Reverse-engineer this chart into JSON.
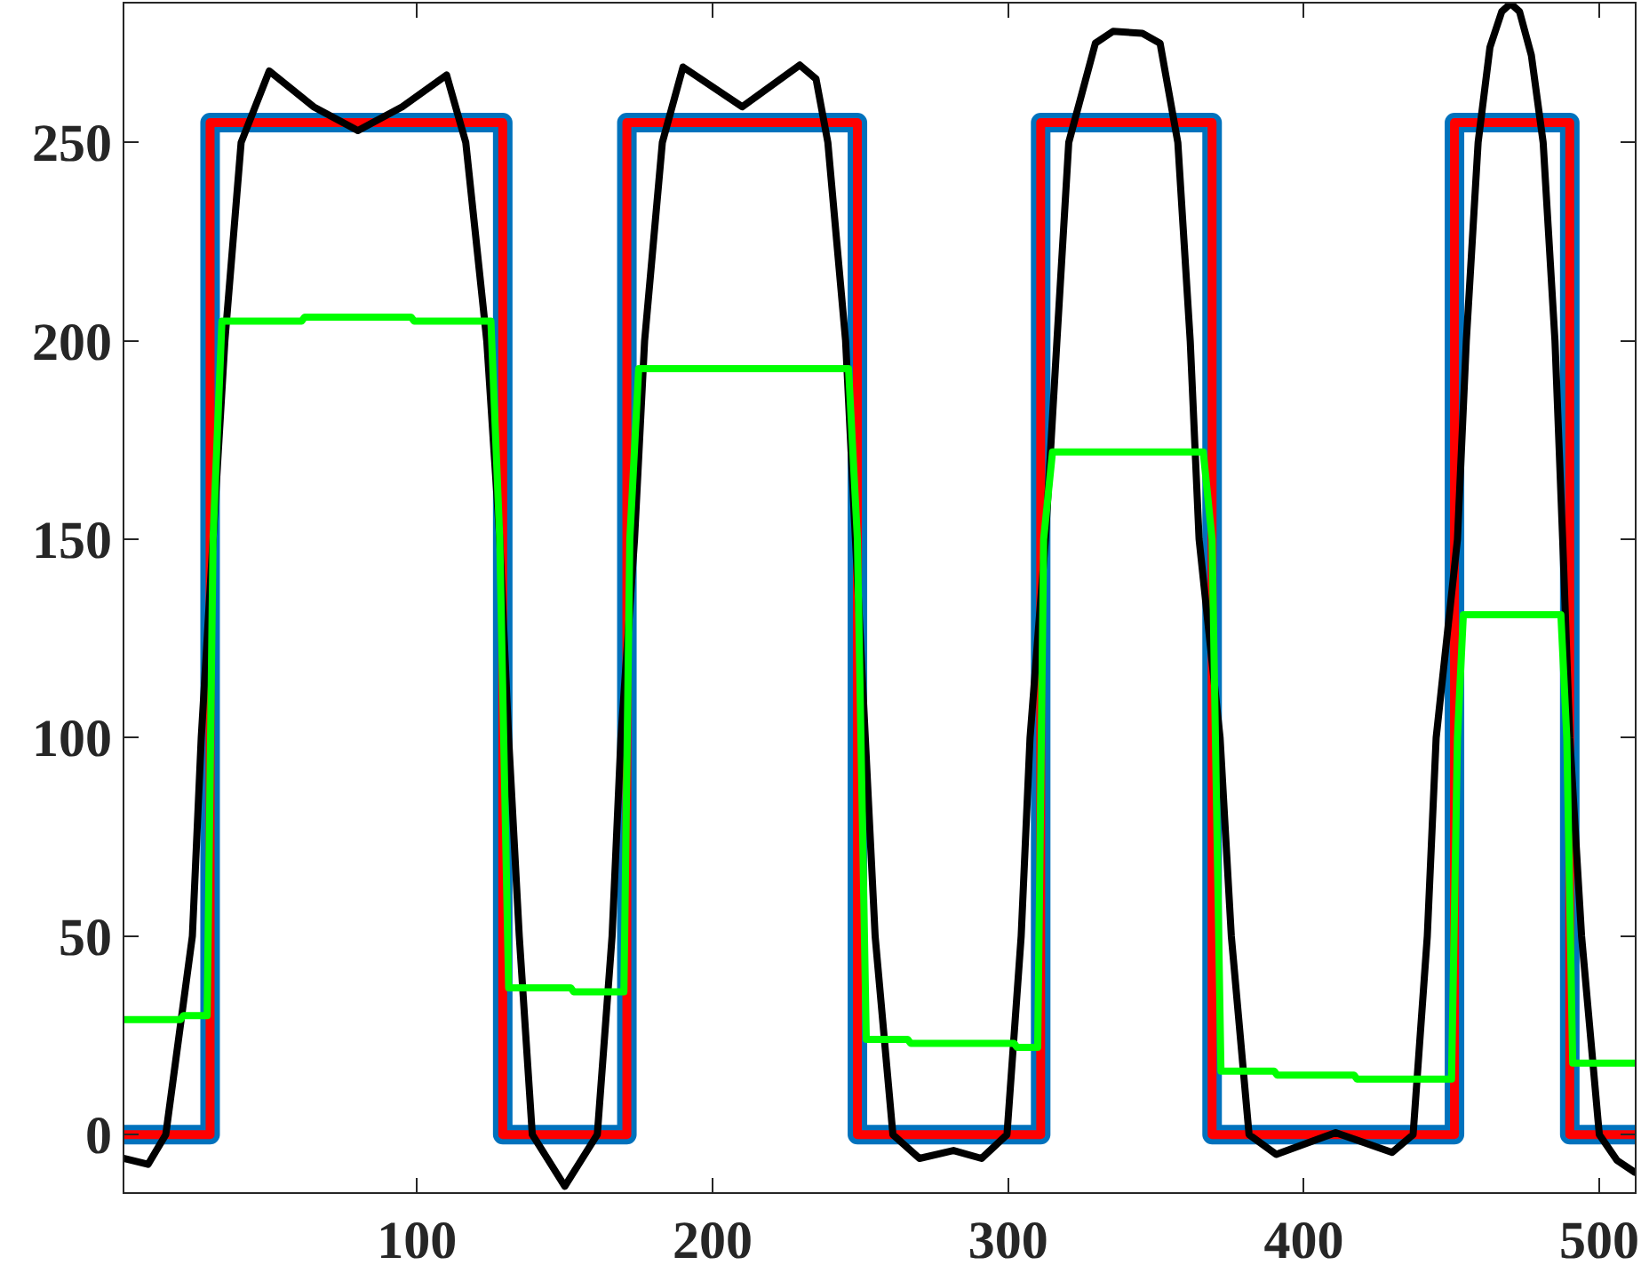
{
  "chart_data": {
    "type": "line",
    "xlim": [
      1,
      512
    ],
    "ylim": [
      -14.5,
      285
    ],
    "xticks": [
      100,
      200,
      300,
      400,
      500
    ],
    "yticks": [
      0,
      50,
      100,
      150,
      200,
      250
    ],
    "series": [
      {
        "color": "#0072bd",
        "x": [
          1,
          30,
          30,
          129,
          129,
          171,
          171,
          249,
          249,
          311,
          311,
          369,
          369,
          451,
          451,
          490,
          490,
          512
        ],
        "values": [
          0,
          0,
          255,
          255,
          0,
          0,
          255,
          255,
          0,
          0,
          255,
          255,
          0,
          0,
          255,
          255,
          0,
          0
        ]
      },
      {
        "color": "#ff0000",
        "x": [
          1,
          30,
          30,
          129,
          129,
          171,
          171,
          249,
          249,
          311,
          311,
          369,
          369,
          451,
          451,
          490,
          490,
          512
        ],
        "values": [
          0,
          0,
          255,
          255,
          0,
          0,
          255,
          255,
          0,
          0,
          255,
          255,
          0,
          0,
          255,
          255,
          0,
          0
        ]
      },
      {
        "color": "#000000",
        "x": [
          1,
          9,
          15,
          24,
          27,
          35,
          40.5,
          50,
          65,
          80,
          95,
          110,
          116.5,
          123.6,
          128,
          131,
          134.6,
          139,
          150,
          161,
          166,
          169,
          173.6,
          177,
          183,
          190,
          210,
          229.5,
          235,
          239,
          245,
          250,
          255,
          261,
          270,
          281.5,
          291,
          299.6,
          304.4,
          307.4,
          312.6,
          316.5,
          320.5,
          329.5,
          335.5,
          345.4,
          351.4,
          357.4,
          361.6,
          364.6,
          371.7,
          375.5,
          381.5,
          390.7,
          410.8,
          429.9,
          437,
          441.8,
          444.8,
          452,
          455,
          459,
          463,
          467,
          470,
          473,
          477,
          481,
          485,
          487.6,
          490,
          494,
          500,
          506,
          512
        ],
        "values": [
          -6,
          -7.5,
          0,
          50,
          100,
          200,
          250,
          268,
          259,
          253,
          259,
          267,
          250,
          200,
          150,
          100,
          50,
          0,
          -13,
          0,
          50,
          100,
          150,
          200,
          250,
          269,
          259,
          269.5,
          266,
          250,
          200,
          125,
          50,
          0,
          -6,
          -4,
          -6,
          0,
          50,
          100,
          150,
          200,
          250,
          275,
          278,
          277.5,
          275,
          250,
          200,
          150,
          100,
          50,
          0,
          -5,
          0.5,
          -4.5,
          0,
          50,
          100,
          150,
          200,
          250,
          274,
          283,
          285,
          283,
          272,
          250,
          200,
          150,
          100,
          50,
          0,
          -6.5,
          -9.5
        ]
      },
      {
        "color": "#00ff00",
        "x": [
          1,
          20,
          21,
          29,
          31,
          34,
          61,
          62,
          98,
          99,
          125,
          128,
          131,
          152,
          153,
          170,
          172,
          175,
          246,
          249,
          252,
          266,
          267,
          302,
          303,
          310,
          312,
          315,
          366,
          369,
          372,
          390,
          391,
          417,
          418,
          450,
          452,
          454,
          487,
          489,
          491,
          512
        ],
        "values": [
          29,
          29,
          30,
          30,
          150,
          205,
          205,
          206,
          206,
          205,
          205,
          150,
          37,
          37,
          36,
          36,
          150,
          193,
          193,
          150,
          24,
          24,
          23,
          23,
          22,
          22,
          150,
          172,
          172,
          150,
          16,
          16,
          15,
          15,
          14,
          14,
          100,
          131,
          131,
          100,
          18,
          18
        ]
      }
    ]
  }
}
